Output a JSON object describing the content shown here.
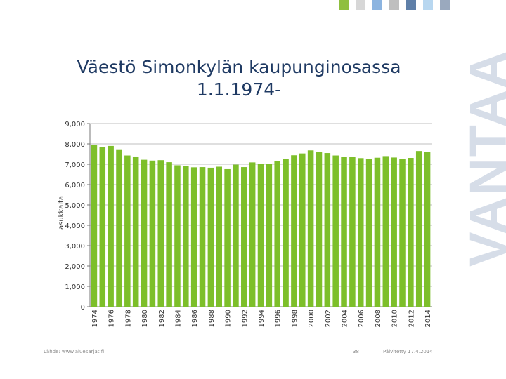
{
  "title_lines": [
    "Väestö Simonkylän kaupunginosassa",
    "1.1.1974-"
  ],
  "brand": "VANTAA",
  "footer": {
    "source": "Lähde: www.aluesarjat.fi",
    "page": "38",
    "updated": "Päivitetty 17.4.2014"
  },
  "colors": {
    "bar": "#7dbf2a",
    "title": "#1f3a63",
    "grid": "#bfbfbf",
    "squares": [
      "#8fbf3f",
      "#d7d7d7",
      "#8cb4e0",
      "#bfbfbf",
      "#5f7fa8",
      "#b8d7f0",
      "#9aa9be"
    ]
  },
  "chart_data": {
    "type": "bar",
    "ylabel": "asukkaita",
    "xlabel": "",
    "ylim": [
      0,
      9000
    ],
    "y_ticks": [
      "0",
      "1,000",
      "2,000",
      "3,000",
      "4,000",
      "5,000",
      "6,000",
      "7,000",
      "8,000",
      "9,000"
    ],
    "x_tick_labels": [
      "1974",
      "1976",
      "1978",
      "1980",
      "1982",
      "1984",
      "1986",
      "1988",
      "1990",
      "1992",
      "1994",
      "1996",
      "1998",
      "2000",
      "2002",
      "2004",
      "2006",
      "2008",
      "2010",
      "2012",
      "2014"
    ],
    "categories": [
      "1974",
      "1975",
      "1976",
      "1977",
      "1978",
      "1979",
      "1980",
      "1981",
      "1982",
      "1983",
      "1984",
      "1985",
      "1986",
      "1987",
      "1988",
      "1989",
      "1990",
      "1991",
      "1992",
      "1993",
      "1994",
      "1995",
      "1996",
      "1997",
      "1998",
      "1999",
      "2000",
      "2001",
      "2002",
      "2003",
      "2004",
      "2005",
      "2006",
      "2007",
      "2008",
      "2009",
      "2010",
      "2011",
      "2012",
      "2013",
      "2014"
    ],
    "values": [
      7950,
      7850,
      7900,
      7700,
      7430,
      7380,
      7220,
      7180,
      7200,
      7100,
      6950,
      6920,
      6850,
      6860,
      6830,
      6880,
      6760,
      6980,
      6860,
      7090,
      7000,
      7020,
      7160,
      7250,
      7440,
      7530,
      7680,
      7600,
      7550,
      7430,
      7370,
      7370,
      7300,
      7250,
      7320,
      7400,
      7330,
      7270,
      7310,
      7650,
      7590
    ],
    "grid": true
  }
}
